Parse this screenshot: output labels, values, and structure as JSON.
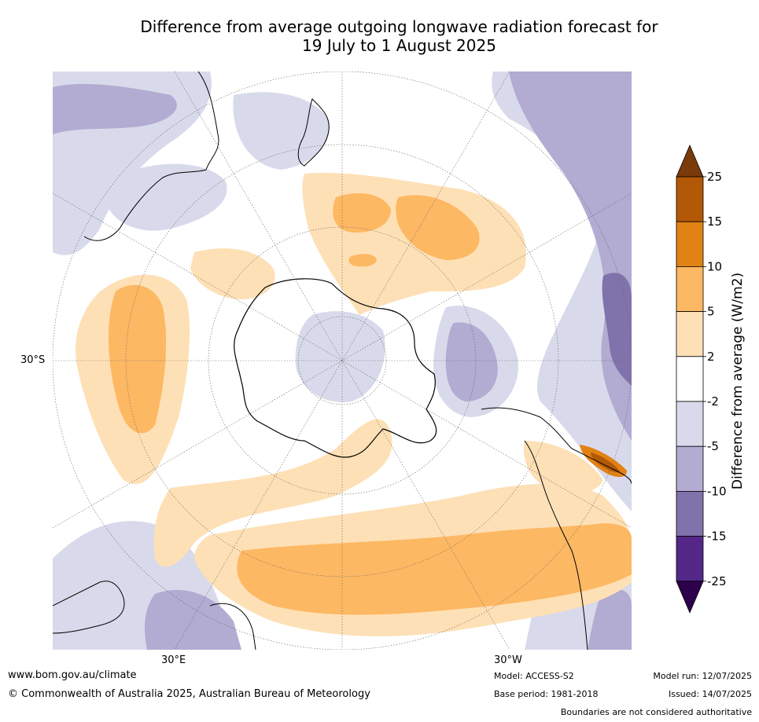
{
  "title": {
    "line1": "Difference from average outgoing longwave radiation forecast for",
    "line2": "19 July to 1 August 2025"
  },
  "map": {
    "projection": "south-polar-stereographic",
    "lat_label": "30°S",
    "lon_labels": [
      "30°E",
      "30°W"
    ]
  },
  "colorbar": {
    "label": "Difference from average (W/m2)",
    "ticks": [
      "25",
      "15",
      "10",
      "5",
      "2",
      "-2",
      "-5",
      "-10",
      "-15",
      "-25"
    ],
    "colors": [
      "#7a3a0a",
      "#b35806",
      "#e08214",
      "#fdb863",
      "#fee0b6",
      "#ffffff",
      "#d8daeb",
      "#b2abd2",
      "#8073ac",
      "#542788",
      "#2d004b"
    ]
  },
  "footer": {
    "website": "www.bom.gov.au/climate",
    "copyright": "© Commonwealth of Australia 2025, Australian Bureau of Meteorology",
    "model": "Model: ACCESS-S2",
    "base_period": "Base period: 1981-2018",
    "model_run": "Model run: 12/07/2025",
    "issued": "Issued: 14/07/2025",
    "disclaimer": "Boundaries are not considered authoritative"
  }
}
